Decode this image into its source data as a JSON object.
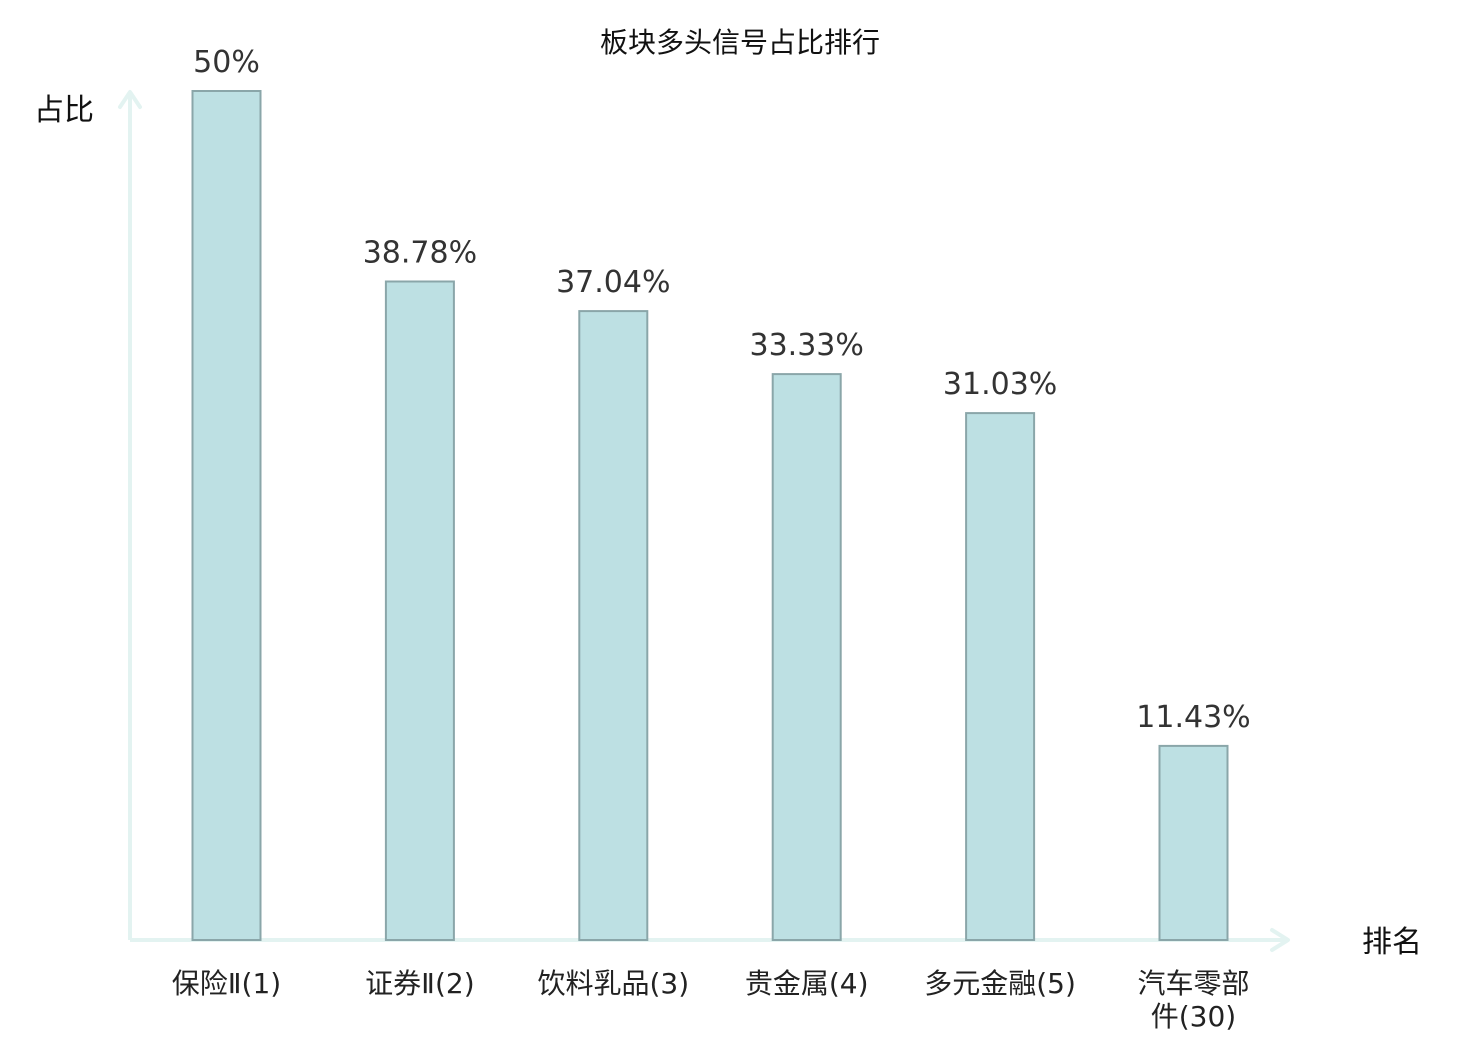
{
  "chart_data": {
    "type": "bar",
    "title": "板块多头信号占比排行",
    "ylabel": "占比",
    "xlabel": "排名",
    "categories": [
      "保险Ⅱ(1)",
      "证券Ⅱ(2)",
      "饮料乳品(3)",
      "贵金属(4)",
      "多元金融(5)",
      "汽车零部件(30)"
    ],
    "category_lines": [
      [
        "保险Ⅱ(1)"
      ],
      [
        "证券Ⅱ(2)"
      ],
      [
        "饮料乳品(3)"
      ],
      [
        "贵金属(4)"
      ],
      [
        "多元金融(5)"
      ],
      [
        "汽车零部",
        "件(30)"
      ]
    ],
    "values": [
      50,
      38.78,
      37.04,
      33.33,
      31.03,
      11.43
    ],
    "value_labels": [
      "50%",
      "38.78%",
      "37.04%",
      "33.33%",
      "31.03%",
      "11.43%"
    ],
    "highlight_index": 5,
    "ylim": [
      0,
      50
    ],
    "grid": false,
    "colors": {
      "bar_fill": "#bde0e3",
      "bar_stroke": "#8aa6a9",
      "axis": "#e3f3f1",
      "highlight_label": "#e8141c",
      "label": "#222222"
    }
  }
}
